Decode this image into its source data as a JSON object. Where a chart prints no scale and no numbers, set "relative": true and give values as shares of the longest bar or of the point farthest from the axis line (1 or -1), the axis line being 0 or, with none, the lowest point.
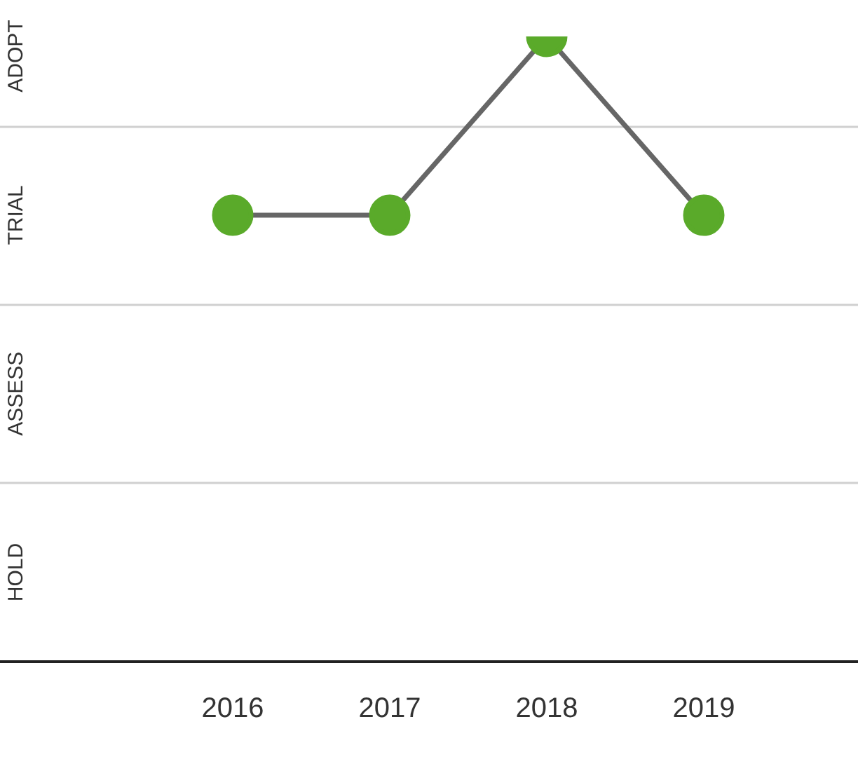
{
  "chart_data": {
    "type": "line",
    "categories": [
      "2016",
      "2017",
      "2018",
      "2019"
    ],
    "relative": true,
    "series": [
      {
        "color": "#5aaa2a",
        "values": [
          0.714,
          0.714,
          1,
          0.714
        ]
      }
    ],
    "ref_lines": [
      {
        "axis": "y",
        "value": 0.286,
        "color": "#d0d0d0"
      },
      {
        "axis": "y",
        "value": 0.571,
        "color": "#d0d0d0"
      },
      {
        "axis": "y",
        "value": 0.857,
        "color": "#d0d0d0"
      }
    ],
    "annotations": [
      "HOLD",
      "ASSESS",
      "TRIAL",
      "ADOPT"
    ],
    "marker": "circle",
    "line_style": "solid"
  }
}
